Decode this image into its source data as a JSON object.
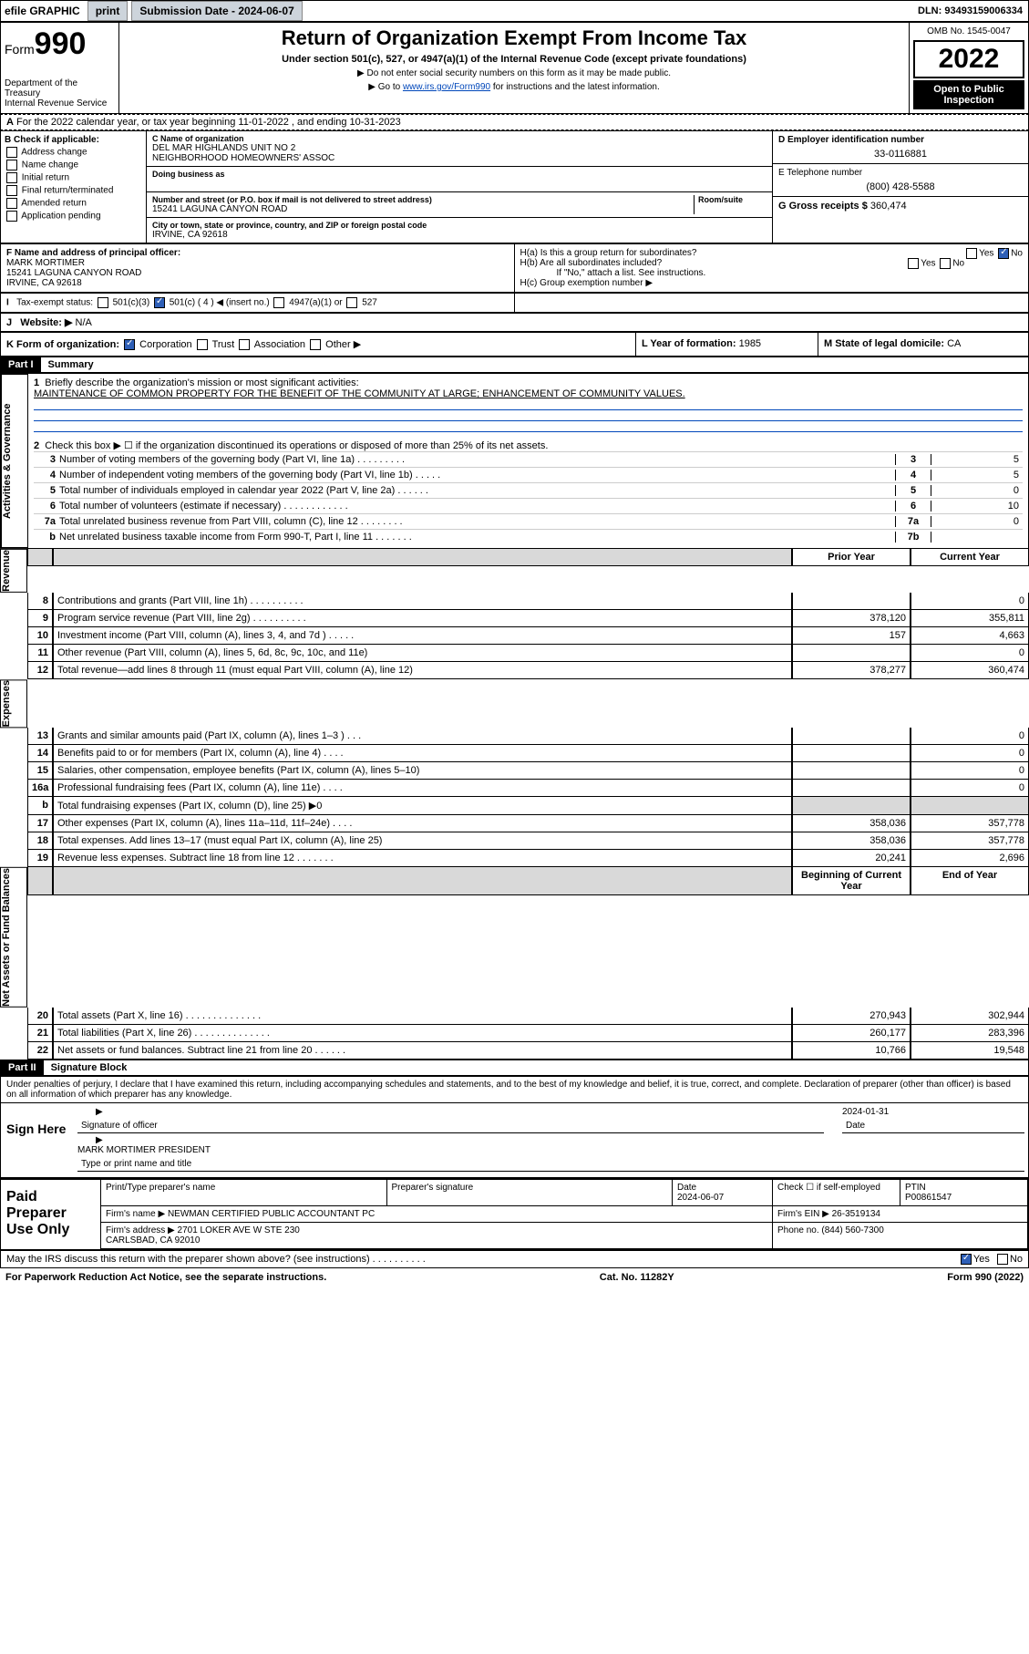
{
  "topbar": {
    "efile": "efile GRAPHIC",
    "print": "print",
    "sub_label": "Submission Date - 2024-06-07",
    "dln": "DLN: 93493159006334"
  },
  "header": {
    "form_small": "Form",
    "form_big": "990",
    "title": "Return of Organization Exempt From Income Tax",
    "subtitle": "Under section 501(c), 527, or 4947(a)(1) of the Internal Revenue Code (except private foundations)",
    "note1": "▶ Do not enter social security numbers on this form as it may be made public.",
    "note2_a": "▶ Go to ",
    "note2_link": "www.irs.gov/Form990",
    "note2_b": " for instructions and the latest information.",
    "dept": "Department of the Treasury\nInternal Revenue Service",
    "omb": "OMB No. 1545-0047",
    "year": "2022",
    "open": "Open to Public Inspection"
  },
  "A": {
    "text": "For the 2022 calendar year, or tax year beginning 11-01-2022   , and ending 10-31-2023"
  },
  "B": {
    "label": "B Check if applicable:",
    "opts": [
      "Address change",
      "Name change",
      "Initial return",
      "Final return/terminated",
      "Amended return",
      "Application pending"
    ]
  },
  "C": {
    "name_label": "C Name of organization",
    "name": "DEL MAR HIGHLANDS UNIT NO 2\nNEIGHBORHOOD HOMEOWNERS' ASSOC",
    "dba_label": "Doing business as",
    "addr_label": "Number and street (or P.O. box if mail is not delivered to street address)",
    "room_label": "Room/suite",
    "addr": "15241 LAGUNA CANYON ROAD",
    "city_label": "City or town, state or province, country, and ZIP or foreign postal code",
    "city": "IRVINE, CA  92618"
  },
  "D": {
    "label": "D Employer identification number",
    "value": "33-0116881"
  },
  "E": {
    "label": "E Telephone number",
    "value": "(800) 428-5588"
  },
  "G": {
    "label": "G Gross receipts $",
    "value": "360,474"
  },
  "F": {
    "label": "F Name and address of principal officer:",
    "name": "MARK MORTIMER",
    "addr": "15241 LAGUNA CANYON ROAD\nIRVINE, CA  92618"
  },
  "H": {
    "a": "H(a)  Is this a group return for subordinates?",
    "b": "H(b)  Are all subordinates included?",
    "b_note": "If \"No,\" attach a list. See instructions.",
    "c": "H(c)  Group exemption number ▶"
  },
  "I": {
    "label": "Tax-exempt status:",
    "opts": [
      "501(c)(3)",
      "501(c) ( 4 ) ◀ (insert no.)",
      "4947(a)(1) or",
      "527"
    ]
  },
  "J": {
    "label": "Website: ▶",
    "value": "N/A"
  },
  "K": {
    "label": "K Form of organization:",
    "opts": [
      "Corporation",
      "Trust",
      "Association",
      "Other ▶"
    ]
  },
  "L": {
    "label": "L Year of formation:",
    "value": "1985"
  },
  "M": {
    "label": "M State of legal domicile:",
    "value": "CA"
  },
  "part1": {
    "hdr": "Part I",
    "title": "Summary",
    "l1": "Briefly describe the organization's mission or most significant activities:",
    "l1v": "MAINTENANCE OF COMMON PROPERTY FOR THE BENEFIT OF THE COMMUNITY AT LARGE; ENHANCEMENT OF COMMUNITY VALUES.",
    "l2": "Check this box ▶ ☐  if the organization discontinued its operations or disposed of more than 25% of its net assets.",
    "side1": "Activities & Governance",
    "side2": "Revenue",
    "side3": "Expenses",
    "side4": "Net Assets or Fund Balances",
    "rows_a": [
      {
        "n": "3",
        "t": "Number of voting members of the governing body (Part VI, line 1a)   .    .    .    .    .    .    .    .    .",
        "b": "3",
        "v": "5"
      },
      {
        "n": "4",
        "t": "Number of independent voting members of the governing body (Part VI, line 1b)   .    .    .    .    .",
        "b": "4",
        "v": "5"
      },
      {
        "n": "5",
        "t": "Total number of individuals employed in calendar year 2022 (Part V, line 2a)   .    .    .    .    .    .",
        "b": "5",
        "v": "0"
      },
      {
        "n": "6",
        "t": "Total number of volunteers (estimate if necessary)   .    .    .    .    .    .    .    .    .    .    .    .",
        "b": "6",
        "v": "10"
      },
      {
        "n": "7a",
        "t": "Total unrelated business revenue from Part VIII, column (C), line 12   .    .    .    .    .    .    .    .",
        "b": "7a",
        "v": "0"
      },
      {
        "n": "b",
        "t": "Net unrelated business taxable income from Form 990-T, Part I, line 11   .    .    .    .    .    .    .",
        "b": "7b",
        "v": ""
      }
    ],
    "col_prior": "Prior Year",
    "col_curr": "Current Year",
    "rows_r": [
      {
        "n": "8",
        "t": "Contributions and grants (Part VIII, line 1h)   .    .    .    .    .    .    .    .    .    .",
        "p": "",
        "c": "0"
      },
      {
        "n": "9",
        "t": "Program service revenue (Part VIII, line 2g)   .    .    .    .    .    .    .    .    .    .",
        "p": "378,120",
        "c": "355,811"
      },
      {
        "n": "10",
        "t": "Investment income (Part VIII, column (A), lines 3, 4, and 7d )   .    .    .    .    .",
        "p": "157",
        "c": "4,663"
      },
      {
        "n": "11",
        "t": "Other revenue (Part VIII, column (A), lines 5, 6d, 8c, 9c, 10c, and 11e)",
        "p": "",
        "c": "0"
      },
      {
        "n": "12",
        "t": "Total revenue—add lines 8 through 11 (must equal Part VIII, column (A), line 12)",
        "p": "378,277",
        "c": "360,474"
      }
    ],
    "rows_e": [
      {
        "n": "13",
        "t": "Grants and similar amounts paid (Part IX, column (A), lines 1–3 )   .    .    .",
        "p": "",
        "c": "0"
      },
      {
        "n": "14",
        "t": "Benefits paid to or for members (Part IX, column (A), line 4)   .    .    .    .",
        "p": "",
        "c": "0"
      },
      {
        "n": "15",
        "t": "Salaries, other compensation, employee benefits (Part IX, column (A), lines 5–10)",
        "p": "",
        "c": "0"
      },
      {
        "n": "16a",
        "t": "Professional fundraising fees (Part IX, column (A), line 11e)   .    .    .    .",
        "p": "",
        "c": "0"
      },
      {
        "n": "b",
        "t": "Total fundraising expenses (Part IX, column (D), line 25) ▶0",
        "p": "—",
        "c": "—"
      },
      {
        "n": "17",
        "t": "Other expenses (Part IX, column (A), lines 11a–11d, 11f–24e)   .    .    .    .",
        "p": "358,036",
        "c": "357,778"
      },
      {
        "n": "18",
        "t": "Total expenses. Add lines 13–17 (must equal Part IX, column (A), line 25)",
        "p": "358,036",
        "c": "357,778"
      },
      {
        "n": "19",
        "t": "Revenue less expenses. Subtract line 18 from line 12   .    .    .    .    .    .    .",
        "p": "20,241",
        "c": "2,696"
      }
    ],
    "col_beg": "Beginning of Current Year",
    "col_end": "End of Year",
    "rows_n": [
      {
        "n": "20",
        "t": "Total assets (Part X, line 16)   .    .    .    .    .    .    .    .    .    .    .    .    .    .",
        "p": "270,943",
        "c": "302,944"
      },
      {
        "n": "21",
        "t": "Total liabilities (Part X, line 26)   .    .    .    .    .    .    .    .    .    .    .    .    .    .",
        "p": "260,177",
        "c": "283,396"
      },
      {
        "n": "22",
        "t": "Net assets or fund balances. Subtract line 21 from line 20   .    .    .    .    .    .",
        "p": "10,766",
        "c": "19,548"
      }
    ]
  },
  "part2": {
    "hdr": "Part II",
    "title": "Signature Block",
    "decl": "Under penalties of perjury, I declare that I have examined this return, including accompanying schedules and statements, and to the best of my knowledge and belief, it is true, correct, and complete. Declaration of preparer (other than officer) is based on all information of which preparer has any knowledge.",
    "sign_here": "Sign Here",
    "sig_officer": "Signature of officer",
    "sig_date": "2024-01-31",
    "sig_date_label": "Date",
    "sig_name": "MARK MORTIMER PRESIDENT",
    "sig_name_label": "Type or print name and title",
    "paid": "Paid Preparer Use Only",
    "prep_name_label": "Print/Type preparer's name",
    "prep_sig_label": "Preparer's signature",
    "prep_date_label": "Date",
    "prep_date": "2024-06-07",
    "prep_check": "Check ☐ if self-employed",
    "ptin_label": "PTIN",
    "ptin": "P00861547",
    "firm_name_label": "Firm's name    ▶",
    "firm_name": "NEWMAN CERTIFIED PUBLIC ACCOUNTANT PC",
    "firm_ein_label": "Firm's EIN ▶",
    "firm_ein": "26-3519134",
    "firm_addr_label": "Firm's address ▶",
    "firm_addr": "2701 LOKER AVE W STE 230\nCARLSBAD, CA  92010",
    "firm_phone_label": "Phone no.",
    "firm_phone": "(844) 560-7300",
    "may_irs": "May the IRS discuss this return with the preparer shown above? (see instructions)   .     .     .     .     .     .     .     .     .     ."
  },
  "footer": {
    "left": "For Paperwork Reduction Act Notice, see the separate instructions.",
    "mid": "Cat. No. 11282Y",
    "right": "Form 990 (2022)"
  },
  "colors": {
    "link": "#0047ba",
    "btn_bg": "#cdd4db",
    "chk_on": "#2e5fb7"
  }
}
